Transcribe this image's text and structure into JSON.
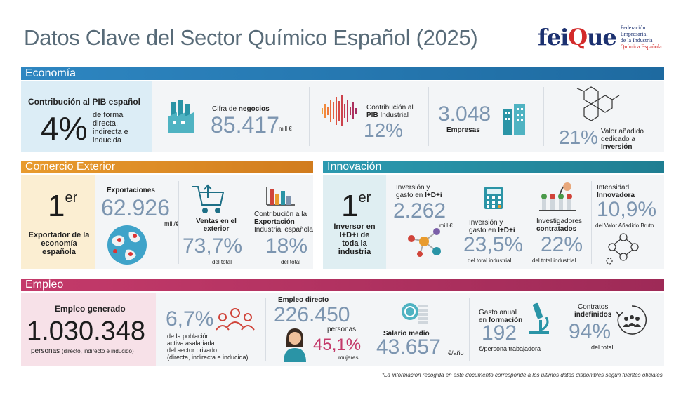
{
  "title": "Datos Clave del Sector Químico Español (2025)",
  "logo": {
    "brand_pre": "fei",
    "brand_q": "Q",
    "brand_post": "ue",
    "sub1": "Federación Empresarial",
    "sub2": "de la Industria",
    "sub3": "Química Española"
  },
  "colors": {
    "economia": "#2b7fb6",
    "comercio": "#e2962e",
    "innovacion": "#2a94a6",
    "empleo": "#c2396c"
  },
  "economia": {
    "label": "Economía",
    "pib_title": "Contribución al PIB español",
    "pib_value": "4%",
    "pib_desc": "de forma directa, indirecta e inducida",
    "negocios_label_pre": "Cifra de ",
    "negocios_label_bold": "negocios",
    "negocios_value": "85.417",
    "negocios_unit": "mill €",
    "pib_ind_label1": "Contribución al",
    "pib_ind_label2_bold": "PIB",
    "pib_ind_label3": " Industrial",
    "pib_ind_value": "12%",
    "empresas_value": "3.048",
    "empresas_label": "Empresas",
    "va_value": "21%",
    "va_label1": "Valor añadido",
    "va_label2": "dedicado a",
    "va_label3": "Inversión"
  },
  "comercio": {
    "label": "Comercio Exterior",
    "rank": "1",
    "rank_sup": "er",
    "rank_desc": "Exportador de la economía española",
    "export_label": "Exportaciones",
    "export_value": "62.926",
    "export_unit": "mill/€",
    "ventas_label": "Ventas en el exterior",
    "ventas_value": "73,7%",
    "ventas_unit": "del total",
    "contrib_label1": "Contribución a la ",
    "contrib_label_bold": "Exportación",
    "contrib_label2": " Industrial española",
    "contrib_value": "18%",
    "contrib_unit": "del total"
  },
  "innovacion": {
    "label": "Innovación",
    "rank": "1",
    "rank_sup": "er",
    "rank_desc": "Inversor en I+D+i de toda la industria",
    "inv_label1": "Inversión y",
    "inv_label2": "gasto en ",
    "inv_label_bold": "I+D+i",
    "inv_value": "2.262",
    "inv_unit": "mill €",
    "pct_label1": "Inversión y",
    "pct_label2": "gasto en ",
    "pct_label_bold": "I+D+i",
    "pct_value": "23,5%",
    "pct_unit": "del total industrial",
    "inv_contr_label1": "Investigadores",
    "inv_contr_label2": "contratados",
    "inv_contr_value": "22%",
    "inv_contr_unit": "del total industrial",
    "intens_label1": "Intensidad",
    "intens_label2": "Innovadora",
    "intens_value": "10,9%",
    "intens_unit": "del Valor Añadido Bruto"
  },
  "empleo": {
    "label": "Empleo",
    "gen_title": "Empleo generado",
    "gen_value": "1.030.348",
    "gen_unit": "personas",
    "gen_note": "(directo, indirecto e inducido)",
    "pobl_value": "6,7%",
    "pobl_label1": "de la población",
    "pobl_label2": "activa asalariada",
    "pobl_label3": "del sector privado",
    "pobl_label4": "(directa, indirecta e inducida)",
    "directo_label": "Empleo directo",
    "directo_value": "226.450",
    "directo_unit": "personas",
    "mujeres_value": "45,1%",
    "mujeres_unit": "mujeres",
    "salario_label": "Salario medio",
    "salario_value": "43.657",
    "salario_unit": "€/año",
    "form_label1": "Gasto anual",
    "form_label2": "en ",
    "form_label_bold": "formación",
    "form_value": "192",
    "form_unit": "€/persona trabajadora",
    "contr_label1": "Contratos",
    "contr_label2": "indefinidos",
    "contr_value": "94%",
    "contr_unit": "del total"
  },
  "footnote": "*La información recogida en este documento corresponde a los últimos datos disponibles según fuentes oficiales."
}
